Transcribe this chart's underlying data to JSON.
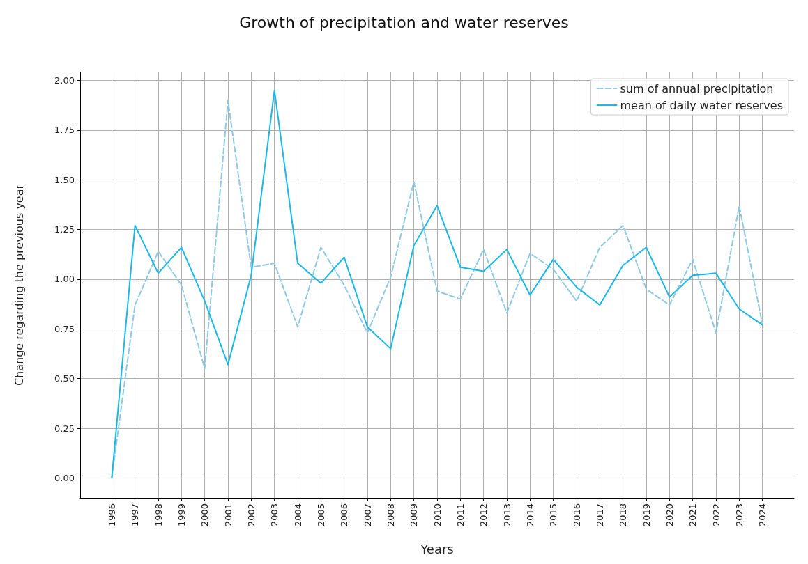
{
  "chart_data": {
    "type": "line",
    "title": "Growth of precipitation and water reserves",
    "xlabel": "Years",
    "ylabel": "Change regarding the previous year",
    "x": [
      1996,
      1997,
      1998,
      1999,
      2000,
      2001,
      2002,
      2003,
      2004,
      2005,
      2006,
      2007,
      2008,
      2009,
      2010,
      2011,
      2012,
      2013,
      2014,
      2015,
      2016,
      2017,
      2018,
      2019,
      2020,
      2021,
      2022,
      2023,
      2024
    ],
    "series": [
      {
        "name": "sum of annual precipitation",
        "color": "#8ecae6",
        "line_style": "dashed",
        "values": [
          0,
          0.87,
          1.14,
          0.97,
          0.55,
          1.9,
          1.06,
          1.08,
          0.76,
          1.16,
          0.97,
          0.73,
          1.01,
          1.49,
          0.94,
          0.9,
          1.15,
          0.83,
          1.13,
          1.05,
          0.89,
          1.16,
          1.27,
          0.95,
          0.87,
          1.1,
          0.73,
          1.37,
          0.77
        ]
      },
      {
        "name": "mean of daily water reserves",
        "color": "#1ab8e8",
        "line_style": "solid",
        "values": [
          0,
          1.27,
          1.03,
          1.16,
          0.89,
          0.57,
          1.02,
          1.95,
          1.08,
          0.98,
          1.11,
          0.76,
          0.65,
          1.17,
          1.37,
          1.06,
          1.04,
          1.15,
          0.92,
          1.1,
          0.96,
          0.87,
          1.07,
          1.16,
          0.91,
          1.02,
          1.03,
          0.85,
          0.77
        ]
      }
    ],
    "xlim": [
      1994.64,
      2025.36
    ],
    "xticks": [
      1996,
      1997,
      1998,
      1999,
      2000,
      2001,
      2002,
      2003,
      2004,
      2005,
      2006,
      2007,
      2008,
      2009,
      2010,
      2011,
      2012,
      2013,
      2014,
      2015,
      2016,
      2017,
      2018,
      2019,
      2020,
      2021,
      2022,
      2023,
      2024
    ],
    "ylim": [
      -0.1,
      2.04
    ],
    "yticks": [
      {
        "value": 0,
        "label": "0.00"
      },
      {
        "value": 0.25,
        "label": "0.25"
      },
      {
        "value": 0.5,
        "label": "0.50"
      },
      {
        "value": 0.75,
        "label": "0.75"
      },
      {
        "value": 1,
        "label": "1.00"
      },
      {
        "value": 1.25,
        "label": "1.25"
      },
      {
        "value": 1.5,
        "label": "1.50"
      },
      {
        "value": 1.75,
        "label": "1.75"
      },
      {
        "value": 2,
        "label": "2.00"
      }
    ],
    "grid": true,
    "legend": "top right",
    "marker": "none"
  }
}
